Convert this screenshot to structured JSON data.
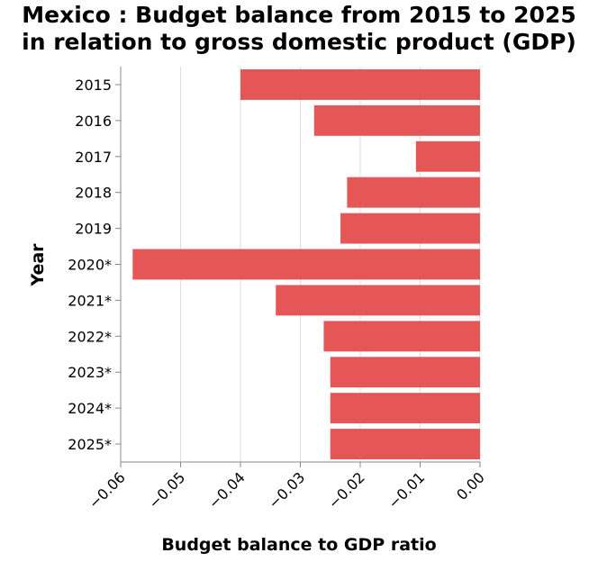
{
  "chart_data": {
    "type": "bar",
    "orientation": "horizontal",
    "title_line1": "Mexico : Budget balance from 2015 to 2025",
    "title_line2": "in relation to gross domestic product (GDP)",
    "xlabel": "Budget balance to GDP ratio",
    "ylabel": "Year",
    "categories": [
      "2015",
      "2016",
      "2017",
      "2018",
      "2019",
      "2020*",
      "2021*",
      "2022*",
      "2023*",
      "2024*",
      "2025*"
    ],
    "values": [
      -0.04,
      -0.0277,
      -0.0107,
      -0.0222,
      -0.0233,
      -0.058,
      -0.0341,
      -0.0261,
      -0.025,
      -0.025,
      -0.025
    ],
    "xlim": [
      -0.06,
      0.0
    ],
    "xticks": [
      "-0.06",
      "-0.05",
      "-0.04",
      "-0.03",
      "-0.02",
      "-0.01",
      "0.00"
    ],
    "grid": "vertical",
    "bar_color": "#e45756",
    "grid_color": "#dddddd",
    "axis_color": "#888888"
  }
}
